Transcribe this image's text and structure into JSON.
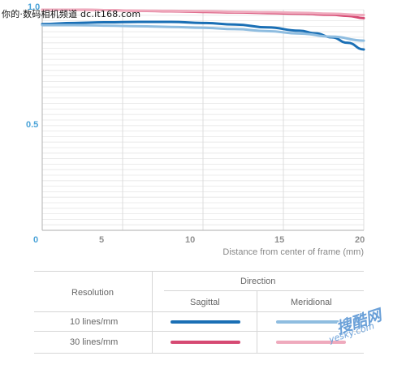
{
  "watermark": {
    "text": "你的·数码相机频道 dc.it168.com"
  },
  "logo": {
    "main": "搜酷网",
    "sub": "yesky.com"
  },
  "colors": {
    "sagittal_10": "#1a6fb5",
    "meridional_10": "#8fbde0",
    "sagittal_30": "#d64a73",
    "meridional_30": "#efaabd",
    "grid": "#e6e6e6",
    "axis_label": "#4aa3d8"
  },
  "chart_data": {
    "type": "line",
    "title": "",
    "xlabel": "Distance from center of frame (mm)",
    "ylabel": "",
    "xlim": [
      0,
      20
    ],
    "ylim": [
      0,
      1.0
    ],
    "x_ticks": [
      "0",
      "5",
      "10",
      "15",
      "20"
    ],
    "y_ticks": [
      "0.5",
      "1.0"
    ],
    "grid": "horizontal",
    "series": [
      {
        "name": "10 lines/mm Sagittal",
        "style": "sagittal_10",
        "x": [
          0,
          2,
          4,
          6,
          8,
          10,
          12,
          14,
          16,
          17,
          18,
          19,
          20
        ],
        "y": [
          0.935,
          0.94,
          0.943,
          0.945,
          0.945,
          0.94,
          0.933,
          0.92,
          0.905,
          0.893,
          0.875,
          0.85,
          0.82
        ]
      },
      {
        "name": "10 lines/mm Meridional",
        "style": "meridional_10",
        "x": [
          0,
          2,
          4,
          6,
          8,
          10,
          12,
          14,
          16,
          18,
          20
        ],
        "y": [
          0.93,
          0.93,
          0.928,
          0.925,
          0.922,
          0.918,
          0.912,
          0.903,
          0.892,
          0.878,
          0.86
        ]
      },
      {
        "name": "30 lines/mm Sagittal",
        "style": "sagittal_30",
        "x": [
          0,
          2,
          4,
          6,
          8,
          10,
          12,
          14,
          16,
          18,
          19,
          20
        ],
        "y": [
          1.0,
          1.0,
          0.998,
          0.995,
          0.993,
          0.99,
          0.988,
          0.985,
          0.982,
          0.977,
          0.972,
          0.962
        ]
      },
      {
        "name": "30 lines/mm Meridional",
        "style": "meridional_30",
        "x": [
          0,
          2,
          4,
          6,
          8,
          10,
          12,
          14,
          16,
          18,
          20
        ],
        "y": [
          1.0,
          1.0,
          0.998,
          0.996,
          0.995,
          0.993,
          0.991,
          0.989,
          0.986,
          0.982,
          0.976
        ]
      }
    ]
  },
  "legend": {
    "resolution_header": "Resolution",
    "direction_header": "Direction",
    "sagittal_header": "Sagittal",
    "meridional_header": "Meridional",
    "rows": [
      {
        "label": "10 lines/mm",
        "sagittal": "sagittal_10",
        "meridional": "meridional_10"
      },
      {
        "label": "30 lines/mm",
        "sagittal": "sagittal_30",
        "meridional": "meridional_30"
      }
    ]
  }
}
